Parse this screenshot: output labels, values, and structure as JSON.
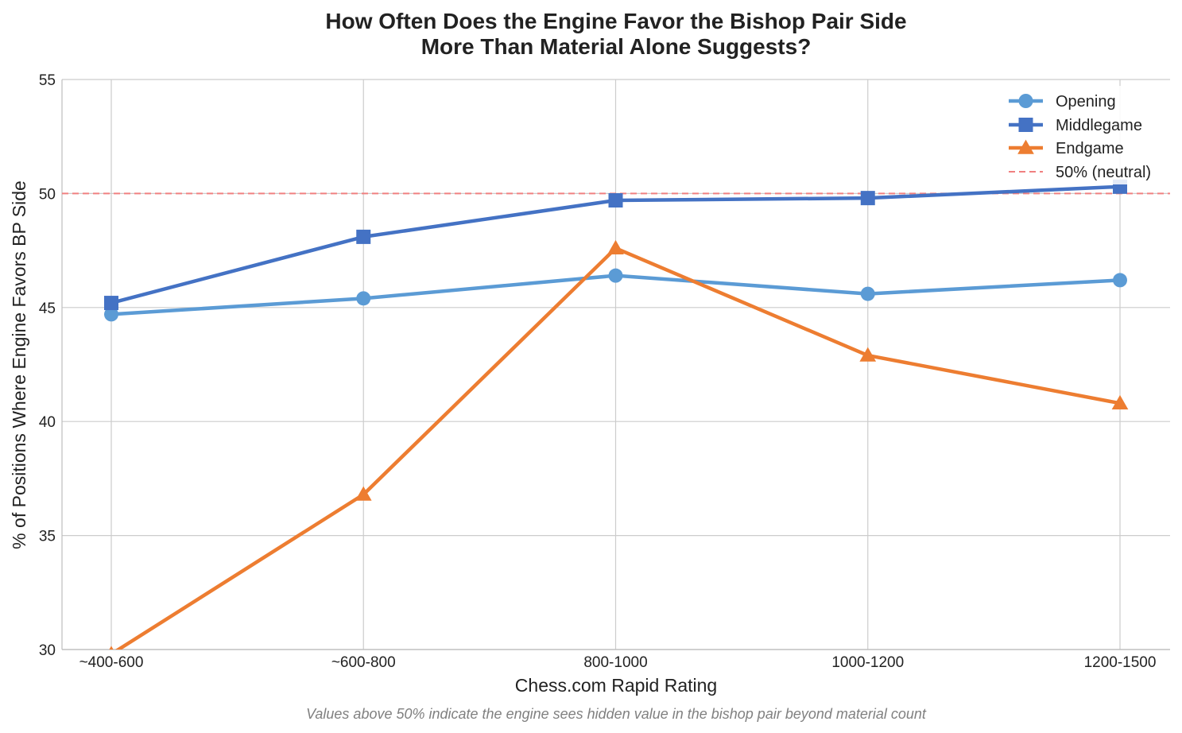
{
  "chart_data": {
    "type": "line",
    "title_line1": "How Often Does the Engine Favor the Bishop Pair Side",
    "title_line2": "More Than Material Alone Suggests?",
    "xlabel": "Chess.com Rapid Rating",
    "ylabel": "% of Positions Where Engine Favors BP Side",
    "categories": [
      "~400-600",
      "~600-800",
      "800-1000",
      "1000-1200",
      "1200-1500"
    ],
    "ylim": [
      30,
      55
    ],
    "yticks": [
      "30",
      "35",
      "40",
      "45",
      "50",
      "55"
    ],
    "grid": true,
    "legend_position": "top-right",
    "series": [
      {
        "name": "Opening",
        "values": [
          44.7,
          45.4,
          46.4,
          45.6,
          46.2
        ],
        "color": "#5b9bd5",
        "marker": "circle"
      },
      {
        "name": "Middlegame",
        "values": [
          45.2,
          48.1,
          49.7,
          49.8,
          50.3
        ],
        "color": "#4472c4",
        "marker": "square"
      },
      {
        "name": "Endgame",
        "values": [
          29.8,
          36.8,
          47.6,
          42.9,
          40.8
        ],
        "color": "#ed7d31",
        "marker": "triangle"
      }
    ],
    "reference_line": {
      "name": "50% (neutral)",
      "value": 50,
      "color": "#f08080"
    },
    "footnote": "Values above 50% indicate the engine sees hidden value in the bishop pair beyond material count"
  }
}
